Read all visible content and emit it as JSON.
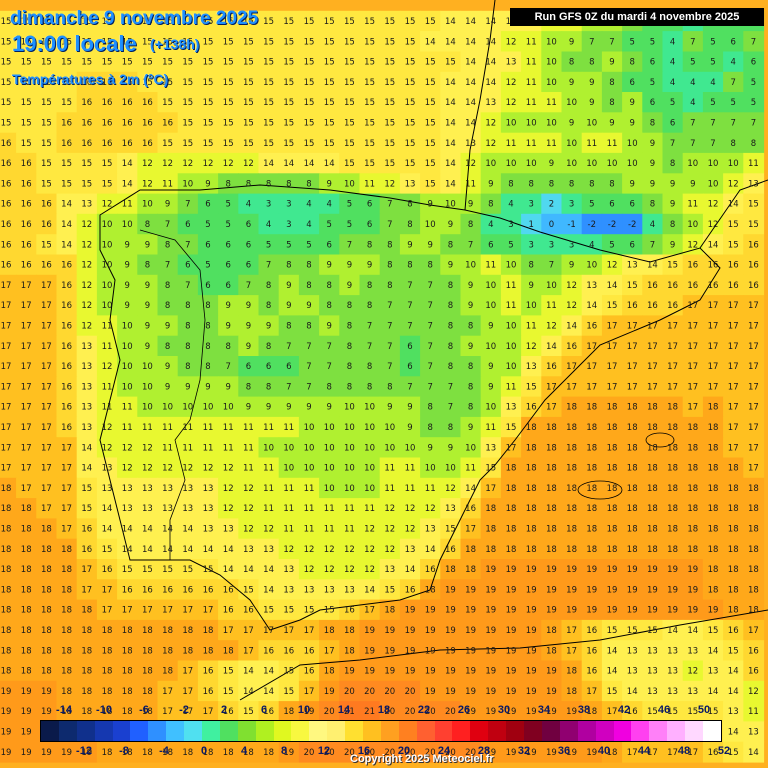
{
  "header": {
    "date": "dimanche 9 novembre 2025",
    "time": "19:00 locale",
    "lead": "(+138h)",
    "field": "Températures à 2m (°C)",
    "run": "Run GFS 0Z du mardi 4 novembre 2025"
  },
  "legend": {
    "top_labels": [
      "-14",
      "-10",
      "-6",
      "-2",
      "2",
      "6",
      "10",
      "14",
      "18",
      "22",
      "26",
      "30",
      "34",
      "38",
      "42",
      "46",
      "50"
    ],
    "bottom_labels": [
      "-12",
      "-8",
      "-4",
      "0",
      "4",
      "8",
      "12",
      "16",
      "20",
      "24",
      "28",
      "32",
      "36",
      "40",
      "44",
      "48",
      "52"
    ],
    "colors": [
      "#0a1a4a",
      "#0d2a6e",
      "#10308c",
      "#1538b0",
      "#1a40d0",
      "#2060ff",
      "#2f90ff",
      "#40c0ff",
      "#50e0f0",
      "#40f0a0",
      "#50e060",
      "#80e030",
      "#b0f020",
      "#e0f820",
      "#f8f840",
      "#fff880",
      "#fff070",
      "#ffe030",
      "#ffc020",
      "#ffa020",
      "#ff8020",
      "#ff6030",
      "#ff4030",
      "#ff2020",
      "#e00010",
      "#c00010",
      "#a00010",
      "#800020",
      "#700040",
      "#900070",
      "#b000a0",
      "#d000c0",
      "#f000e0",
      "#ff40f0",
      "#ff80f8",
      "#ffb0ff",
      "#ffd8ff",
      "#ffffff"
    ]
  },
  "copyright": "Copyright 2025 Meteociel.fr",
  "map": {
    "colors": {
      "sea_warm": "#ff9a1a",
      "sea_mild": "#ffb020",
      "land_cool": "#a0e84a",
      "land_cold": "#40d870",
      "sw_low": "#50b0ff"
    },
    "rows": [
      "15 15 15 15 15 15 15 15 15 15 15 15 15 15 15 15 15 15 15 15 15 15 14 14 14 14 13 12 11 10 9 7 6 5 4 5 6 6",
      "15 15 15 15 15 15 15 15 15 15 15 15 15 15 15 15 15 15 15 15 15 14 14 14 14 12 11 10 9 7 7 5 5 4 7 5 6 7",
      "15 15 15 15 15 15 15 15 15 15 15 15 15 15 15 15 15 15 15 15 15 15 15 14 14 13 11 10 8 8 9 8 6 4 5 5 4 6",
      "15 15 15 15 16 16 16 15 15 15 15 15 15 15 15 15 15 15 15 15 15 15 14 14 14 12 11 10 9 9 8 6 5 4 4 4 7 5",
      "15 15 15 15 16 16 16 16 15 15 15 15 15 15 15 15 15 15 15 15 15 15 14 14 13 12 11 11 10 9 8 9 6 5 4 5 5 5",
      "15 15 15 16 16 16 16 16 16 15 15 15 15 15 15 15 15 15 15 15 15 15 14 14 12 10 10 10 9 10 9 9 8 6 7 7 7 7",
      "16 15 15 16 16 16 16 16 15 15 15 15 15 15 15 15 15 15 15 15 15 15 14 13 12 11 11 11 10 11 11 10 9 7 7 7 8 8",
      "16 16 15 15 15 15 14 12 12 12 12 12 12 14 14 14 14 15 15 15 15 15 14 12 10 10 10 9 10 10 10 10 9 8 10 10 10 11",
      "16 16 15 15 15 15 14 12 11 10 9 8 8 8 8 8 9 10 11 12 13 15 14 11 9 8 8 8 8 8 8 9 9 9 9 10 12 13",
      "16 16 16 14 13 12 11 10 9 7 6 5 4 3 3 4 4 5 6 7 8 9 10 9 8 4 3 2 3 5 6 6 8 9 11 12 14 15",
      "16 16 16 14 12 10 10 8 7 6 5 5 6 4 3 4 5 5 6 7 8 10 9 8 4 3 1 0 -1 -2 -2 -2 4 8 10 12 15 15",
      "16 16 15 14 12 10 9 9 8 7 6 6 6 5 5 5 6 7 8 8 9 9 8 7 6 5 3 3 3 4 5 6 7 9 12 14 15 16",
      "16 16 16 16 12 10 9 8 7 6 5 6 6 7 8 8 9 9 9 8 8 8 9 10 11 10 8 7 9 10 12 13 14 15 16 16 16 16",
      "17 17 17 16 12 10 9 9 8 7 6 6 7 8 9 8 8 9 8 8 7 7 8 9 10 11 9 10 12 13 14 15 16 16 16 16 16 16",
      "17 17 17 16 12 10 9 9 8 8 8 9 9 8 9 9 8 8 8 7 7 7 8 9 10 11 10 11 12 14 15 16 16 16 17 17 17 17",
      "17 17 17 16 12 11 10 9 9 8 8 9 9 9 8 8 9 8 7 7 7 7 8 8 9 10 11 12 14 16 17 17 17 17 17 17 17 17",
      "17 17 17 16 13 11 10 9 8 8 8 8 9 8 7 7 7 8 7 7 6 7 8 9 10 10 12 14 16 17 17 17 17 17 17 17 17 17",
      "17 17 17 16 13 12 10 10 9 8 8 7 6 6 6 7 7 8 8 7 6 7 8 8 9 10 13 16 17 17 17 17 17 17 17 17 17 17",
      "17 17 17 16 13 11 10 10 9 9 9 9 8 8 7 7 8 8 8 8 7 7 7 8 9 11 15 17 17 17 17 17 17 17 17 17 17 17",
      "17 17 17 16 13 11 11 10 10 10 10 10 9 9 9 9 9 10 10 9 9 8 7 8 10 13 16 17 18 18 18 18 18 18 17 18 17 17",
      "17 17 17 16 13 12 11 11 11 11 11 11 11 11 11 10 10 10 10 10 9 8 8 9 11 15 18 18 18 18 18 18 18 18 18 18 17 17",
      "17 17 17 17 14 12 12 12 11 11 11 11 11 10 10 10 10 10 10 10 10 9 9 10 13 17 18 18 18 18 18 18 18 18 18 18 17 17",
      "17 17 17 17 14 13 12 12 12 12 12 12 11 11 10 10 10 10 10 11 11 10 10 11 15 18 18 18 18 18 18 18 18 18 18 18 18 17",
      "18 17 17 17 15 13 13 13 13 13 13 12 12 11 11 11 10 10 10 11 11 11 12 14 17 18 18 18 18 18 18 18 18 18 18 18 18 18",
      "18 18 17 17 15 14 13 13 13 13 13 12 12 11 11 11 11 11 11 12 12 12 13 16 18 18 18 18 18 18 18 18 18 18 18 18 18 18",
      "18 18 18 17 16 14 14 14 14 14 13 13 12 12 11 11 11 11 12 12 12 13 15 17 18 18 18 18 18 18 18 18 18 18 18 18 18 18",
      "18 18 18 18 16 15 14 14 14 14 14 14 13 13 12 12 12 12 12 12 13 14 16 18 18 18 18 18 18 18 18 18 18 18 18 18 18 18",
      "18 18 18 18 17 16 15 15 15 15 15 14 14 14 13 12 12 12 12 13 14 16 18 18 19 19 19 19 19 19 19 19 19 19 19 18 18 18",
      "18 18 18 18 17 17 16 16 16 16 16 16 15 14 13 13 13 13 14 15 16 18 19 19 19 19 19 19 19 19 19 19 19 19 19 18 18 18",
      "18 18 18 18 18 17 17 17 17 17 17 16 16 15 15 15 15 16 17 18 19 19 19 19 19 19 19 19 19 19 19 19 19 19 19 19 18 18",
      "18 18 18 18 18 18 18 18 18 18 18 17 17 17 17 17 18 18 19 19 19 19 19 19 19 19 19 18 17 16 15 15 15 14 14 15 16 17",
      "18 18 18 18 18 18 18 18 18 18 18 18 17 16 16 16 17 18 19 19 19 19 19 19 19 19 19 18 17 16 14 13 13 13 13 14 15 16",
      "18 18 18 18 18 18 18 18 18 17 16 15 14 14 15 16 18 19 19 19 19 19 19 19 19 19 19 19 18 16 14 13 13 13 12 13 14 16",
      "19 19 19 18 18 18 18 18 17 17 16 15 14 14 15 17 19 20 20 20 20 19 19 19 19 19 19 19 18 17 15 14 13 13 13 14 14 12",
      "19 19 19 18 18 18 18 18 17 17 17 16 15 16 18 19 20 21 21 20 20 20 20 19 19 19 19 19 19 18 17 16 15 15 15 15 13 11",
      "19 19 19 19 18 18 18 18 18 18 18 17 17 17 19 20 21 21 21 21 21 21 20 20 19 19 19 19 19 19 18 17 16 16 16 15 14 13",
      "19 19 19 19 19 18 18 18 18 18 18 18 18 18 19 20 20 20 20 20 20 20 20 20 19 19 19 19 19 19 18 17 17 17 17 16 15 14"
    ]
  }
}
